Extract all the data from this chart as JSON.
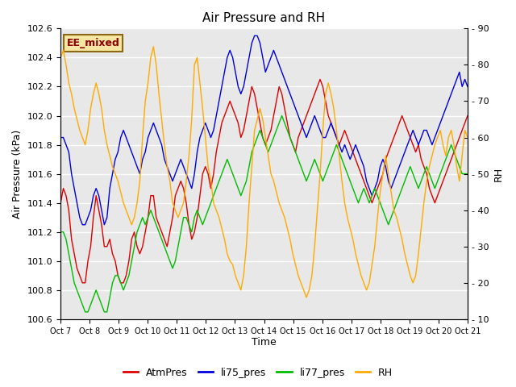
{
  "title": "Air Pressure and RH",
  "xlabel": "Time",
  "ylabel_left": "Air Pressure (kPa)",
  "ylabel_right": "RH",
  "annotation": "EE_mixed",
  "ylim_left": [
    100.6,
    102.6
  ],
  "ylim_right": [
    10,
    90
  ],
  "background_color": "#e8e8e8",
  "fig_color": "#ffffff",
  "x_ticks": [
    "Oct 7",
    "Oct 8",
    "Oct 9",
    "Oct 10",
    "Oct 11",
    "Oct 12",
    "Oct 13",
    "Oct 14",
    "Oct 15",
    "Oct 16",
    "Oct 17",
    "Oct 18",
    "Oct 19",
    "Oct 20",
    "Oct 21"
  ],
  "colors": {
    "AtmPres": "#dd0000",
    "li75_pres": "#0000dd",
    "li77_pres": "#00bb00",
    "RH": "#ffaa00"
  },
  "series_labels": [
    "AtmPres",
    "li75_pres",
    "li77_pres",
    "RH"
  ],
  "atm": [
    101.4,
    101.5,
    101.45,
    101.35,
    101.15,
    101.05,
    100.95,
    100.9,
    100.85,
    100.85,
    101.0,
    101.1,
    101.3,
    101.45,
    101.35,
    101.25,
    101.1,
    101.1,
    101.15,
    101.05,
    101.0,
    100.9,
    100.85,
    100.85,
    100.9,
    101.0,
    101.15,
    101.2,
    101.1,
    101.05,
    101.1,
    101.2,
    101.3,
    101.45,
    101.45,
    101.3,
    101.25,
    101.2,
    101.15,
    101.1,
    101.2,
    101.3,
    101.45,
    101.5,
    101.55,
    101.5,
    101.4,
    101.25,
    101.15,
    101.2,
    101.3,
    101.45,
    101.6,
    101.65,
    101.6,
    101.5,
    101.6,
    101.75,
    101.85,
    101.95,
    102.0,
    102.05,
    102.1,
    102.05,
    102.0,
    101.95,
    101.85,
    101.9,
    102.0,
    102.1,
    102.2,
    102.15,
    102.05,
    101.95,
    101.85,
    101.8,
    101.85,
    101.9,
    102.0,
    102.1,
    102.2,
    102.15,
    102.05,
    101.95,
    101.85,
    101.8,
    101.75,
    101.85,
    101.9,
    101.95,
    102.0,
    102.05,
    102.1,
    102.15,
    102.2,
    102.25,
    102.2,
    102.1,
    102.0,
    101.95,
    101.9,
    101.85,
    101.8,
    101.85,
    101.9,
    101.85,
    101.8,
    101.75,
    101.7,
    101.65,
    101.6,
    101.55,
    101.5,
    101.45,
    101.4,
    101.45,
    101.5,
    101.55,
    101.6,
    101.7,
    101.75,
    101.8,
    101.85,
    101.9,
    101.95,
    102.0,
    101.95,
    101.9,
    101.85,
    101.8,
    101.75,
    101.8,
    101.7,
    101.65,
    101.6,
    101.5,
    101.45,
    101.4,
    101.45,
    101.5,
    101.55,
    101.6,
    101.65,
    101.7,
    101.75,
    101.8,
    101.85,
    101.9,
    101.95,
    102.0
  ],
  "li75": [
    101.85,
    101.85,
    101.8,
    101.75,
    101.6,
    101.5,
    101.4,
    101.3,
    101.25,
    101.25,
    101.3,
    101.35,
    101.45,
    101.5,
    101.45,
    101.35,
    101.25,
    101.3,
    101.5,
    101.6,
    101.7,
    101.75,
    101.85,
    101.9,
    101.85,
    101.8,
    101.75,
    101.7,
    101.65,
    101.6,
    101.7,
    101.75,
    101.85,
    101.9,
    101.95,
    101.9,
    101.85,
    101.8,
    101.7,
    101.65,
    101.6,
    101.55,
    101.6,
    101.65,
    101.7,
    101.65,
    101.6,
    101.55,
    101.5,
    101.6,
    101.75,
    101.85,
    101.9,
    101.95,
    101.9,
    101.85,
    101.9,
    102.0,
    102.1,
    102.2,
    102.3,
    102.4,
    102.45,
    102.4,
    102.3,
    102.2,
    102.15,
    102.2,
    102.3,
    102.4,
    102.5,
    102.55,
    102.55,
    102.5,
    102.4,
    102.3,
    102.35,
    102.4,
    102.45,
    102.4,
    102.35,
    102.3,
    102.25,
    102.2,
    102.15,
    102.1,
    102.05,
    102.0,
    101.95,
    101.9,
    101.85,
    101.9,
    101.95,
    102.0,
    101.95,
    101.9,
    101.85,
    101.85,
    101.9,
    101.95,
    101.9,
    101.85,
    101.8,
    101.75,
    101.8,
    101.75,
    101.7,
    101.75,
    101.8,
    101.75,
    101.7,
    101.65,
    101.55,
    101.5,
    101.45,
    101.5,
    101.55,
    101.65,
    101.7,
    101.65,
    101.55,
    101.5,
    101.55,
    101.6,
    101.65,
    101.7,
    101.75,
    101.8,
    101.85,
    101.9,
    101.85,
    101.8,
    101.85,
    101.9,
    101.9,
    101.85,
    101.8,
    101.85,
    101.9,
    101.95,
    102.0,
    102.05,
    102.1,
    102.15,
    102.2,
    102.25,
    102.3,
    102.2,
    102.25,
    102.2
  ],
  "li77": [
    101.2,
    101.2,
    101.15,
    101.05,
    100.95,
    100.85,
    100.8,
    100.75,
    100.7,
    100.65,
    100.65,
    100.7,
    100.75,
    100.8,
    100.75,
    100.7,
    100.65,
    100.65,
    100.75,
    100.85,
    100.9,
    100.9,
    100.85,
    100.8,
    100.85,
    100.9,
    101.0,
    101.1,
    101.2,
    101.25,
    101.3,
    101.25,
    101.3,
    101.35,
    101.3,
    101.25,
    101.2,
    101.15,
    101.1,
    101.05,
    101.0,
    100.95,
    101.0,
    101.1,
    101.2,
    101.3,
    101.3,
    101.25,
    101.2,
    101.3,
    101.35,
    101.3,
    101.25,
    101.3,
    101.35,
    101.4,
    101.45,
    101.5,
    101.55,
    101.6,
    101.65,
    101.7,
    101.65,
    101.6,
    101.55,
    101.5,
    101.45,
    101.5,
    101.55,
    101.65,
    101.75,
    101.8,
    101.85,
    101.9,
    101.85,
    101.8,
    101.75,
    101.8,
    101.85,
    101.9,
    101.95,
    102.0,
    101.95,
    101.9,
    101.85,
    101.8,
    101.75,
    101.7,
    101.65,
    101.6,
    101.55,
    101.6,
    101.65,
    101.7,
    101.65,
    101.6,
    101.55,
    101.6,
    101.65,
    101.7,
    101.75,
    101.8,
    101.75,
    101.7,
    101.65,
    101.6,
    101.55,
    101.5,
    101.45,
    101.4,
    101.45,
    101.5,
    101.45,
    101.4,
    101.45,
    101.5,
    101.45,
    101.4,
    101.35,
    101.3,
    101.25,
    101.3,
    101.35,
    101.4,
    101.45,
    101.5,
    101.55,
    101.6,
    101.65,
    101.6,
    101.55,
    101.5,
    101.55,
    101.6,
    101.65,
    101.6,
    101.55,
    101.5,
    101.55,
    101.6,
    101.65,
    101.7,
    101.75,
    101.8,
    101.75,
    101.7,
    101.65,
    101.6,
    101.6,
    101.6
  ],
  "rh": [
    82,
    84,
    80,
    75,
    72,
    68,
    65,
    62,
    60,
    58,
    62,
    68,
    72,
    75,
    72,
    68,
    62,
    58,
    55,
    52,
    50,
    48,
    45,
    42,
    40,
    38,
    36,
    38,
    42,
    48,
    60,
    70,
    75,
    82,
    85,
    80,
    72,
    65,
    58,
    52,
    48,
    42,
    40,
    38,
    40,
    42,
    48,
    55,
    65,
    80,
    82,
    75,
    68,
    60,
    52,
    48,
    42,
    40,
    38,
    35,
    32,
    28,
    26,
    25,
    22,
    20,
    18,
    22,
    30,
    42,
    52,
    62,
    65,
    68,
    65,
    60,
    55,
    50,
    48,
    45,
    42,
    40,
    38,
    35,
    32,
    28,
    25,
    22,
    20,
    18,
    16,
    18,
    22,
    30,
    40,
    50,
    62,
    72,
    75,
    72,
    68,
    62,
    55,
    48,
    42,
    38,
    35,
    32,
    28,
    25,
    22,
    20,
    18,
    20,
    25,
    30,
    38,
    45,
    50,
    55,
    50,
    45,
    40,
    38,
    35,
    32,
    28,
    25,
    22,
    20,
    22,
    28,
    35,
    42,
    48,
    52,
    55,
    58,
    60,
    62,
    58,
    55,
    60,
    62,
    58,
    52,
    48,
    55,
    62,
    60
  ]
}
